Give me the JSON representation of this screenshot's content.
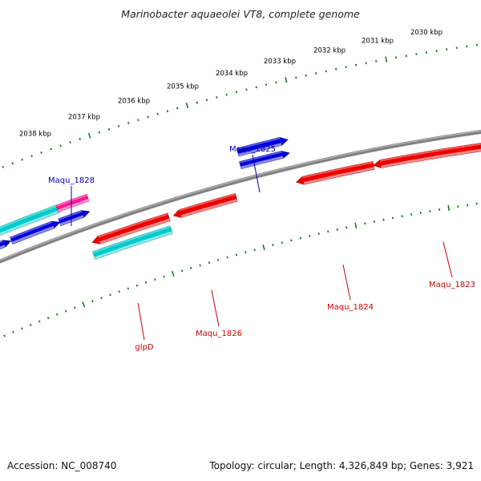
{
  "map": {
    "title": "Marinobacter aquaeolei VT8, complete genome",
    "accession": "Accession: NC_008740",
    "topology": "Topology: circular; Length: 4,326,849 bp; Genes: 3,921"
  },
  "colors": {
    "background": "#ffffff",
    "backbone": "#808080",
    "tick": "#1a7a1a",
    "forward_gene": "#0000dd",
    "reverse_gene": "#ee0000",
    "rna_gene": "#00cccc",
    "pseudo_gene": "#ff1493",
    "forward_label": "#0000bb",
    "reverse_label": "#cc0000",
    "kbp_label": "#000000"
  },
  "scale": {
    "unit": "kbp",
    "labels": [
      "2030 kbp",
      "2031 kbp",
      "2032 kbp",
      "2033 kbp",
      "2034 kbp",
      "2035 kbp",
      "2036 kbp",
      "2037 kbp",
      "2038 kbp"
    ]
  },
  "genes": [
    {
      "name": "Maqu_1825",
      "strand": "+",
      "color_key": "forward_gene"
    },
    {
      "name": "Maqu_1828",
      "strand": "+",
      "color_key": "forward_gene"
    },
    {
      "name": "glpD",
      "strand": "-",
      "color_key": "reverse_gene"
    },
    {
      "name": "Maqu_1826",
      "strand": "-",
      "color_key": "reverse_gene"
    },
    {
      "name": "Maqu_1824",
      "strand": "-",
      "color_key": "reverse_gene"
    },
    {
      "name": "Maqu_1823",
      "strand": "-",
      "color_key": "reverse_gene"
    }
  ]
}
